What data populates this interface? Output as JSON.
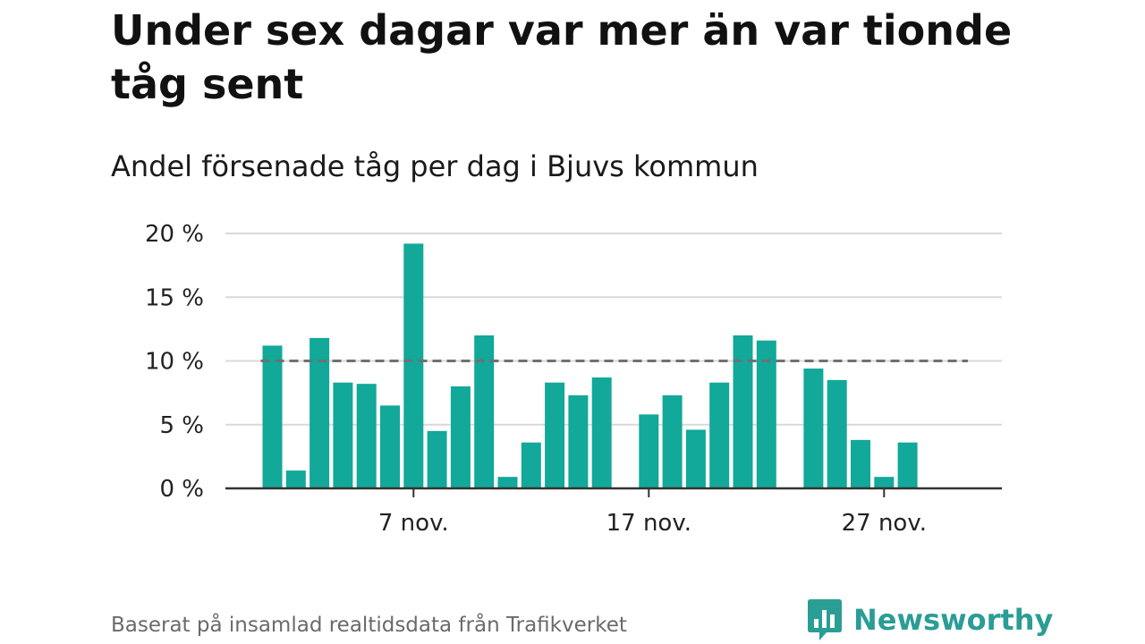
{
  "title": "Under sex dagar var mer än var tionde tåg sent",
  "subtitle": "Andel försenade tåg per dag i Bjuvs kommun",
  "footer": "Baserat på insamlad realtidsdata från Trafikverket",
  "brand": {
    "name": "Newsworthy",
    "icon": "newsworthy-logo-icon",
    "color": "#2a9d95"
  },
  "colors": {
    "bar": "#12a89a",
    "grid": "#d9d9d9",
    "reference": "#707070",
    "axis": "#333333"
  },
  "chart_data": {
    "type": "bar",
    "x_start_day": 1,
    "x_end_day": 30,
    "values": [
      11.2,
      1.4,
      11.8,
      8.3,
      8.2,
      6.5,
      19.2,
      4.5,
      8.0,
      12.0,
      0.9,
      3.6,
      8.3,
      7.3,
      8.7,
      null,
      5.8,
      7.3,
      4.6,
      8.3,
      12.0,
      11.6,
      null,
      9.4,
      8.5,
      3.8,
      0.9,
      3.6,
      null,
      null
    ],
    "yticks": [
      0,
      5,
      10,
      15,
      20
    ],
    "ytick_labels": [
      "0 %",
      "5 %",
      "10 %",
      "15 %",
      "20 %"
    ],
    "xticks": [
      7,
      17,
      27
    ],
    "xtick_labels": [
      "7 nov.",
      "17 nov.",
      "27 nov."
    ],
    "ylim": [
      0,
      20
    ],
    "reference_line": 10,
    "grid": true,
    "legend": "none"
  }
}
